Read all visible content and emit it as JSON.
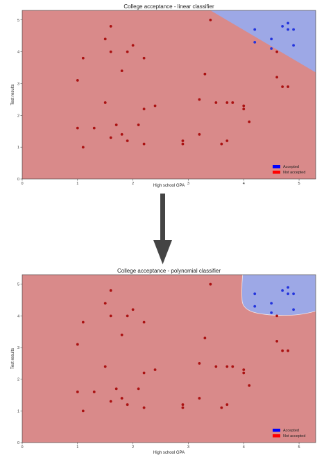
{
  "chart_data": [
    {
      "type": "scatter",
      "title": "College acceptance - linear classifier",
      "xlabel": "High school GPA",
      "ylabel": "Test results",
      "xlim": [
        0,
        5.3
      ],
      "ylim": [
        0,
        5.3
      ],
      "xticks": [
        0,
        1,
        2,
        3,
        4,
        5
      ],
      "yticks": [
        0,
        1,
        2,
        3,
        4,
        5
      ],
      "grid": false,
      "legend_position": "bottom-right",
      "colors": {
        "accepted_region": "#9da8e6",
        "rejected_region": "#d98a8a",
        "accepted_point": "#2233dd",
        "rejected_point": "#aa1111",
        "legend_accepted": "#0000ff",
        "legend_rejected": "#ff0000"
      },
      "boundary": "linear",
      "series": [
        {
          "name": "Accepted",
          "points": [
            [
              4.2,
              4.7
            ],
            [
              4.7,
              4.8
            ],
            [
              4.8,
              4.9
            ],
            [
              4.8,
              4.7
            ],
            [
              4.9,
              4.7
            ],
            [
              4.5,
              4.4
            ],
            [
              4.2,
              4.3
            ],
            [
              4.5,
              4.1
            ],
            [
              4.9,
              4.2
            ]
          ]
        },
        {
          "name": "Not accepted",
          "points": [
            [
              1.6,
              4.8
            ],
            [
              1.5,
              4.4
            ],
            [
              1.6,
              4.0
            ],
            [
              1.9,
              4.0
            ],
            [
              2.0,
              4.2
            ],
            [
              1.1,
              3.8
            ],
            [
              1.8,
              3.4
            ],
            [
              2.2,
              3.8
            ],
            [
              1.0,
              3.1
            ],
            [
              3.4,
              5.0
            ],
            [
              3.3,
              3.3
            ],
            [
              4.6,
              4.0
            ],
            [
              4.6,
              3.2
            ],
            [
              4.7,
              2.9
            ],
            [
              4.8,
              2.9
            ],
            [
              1.5,
              2.4
            ],
            [
              2.4,
              2.3
            ],
            [
              2.2,
              2.2
            ],
            [
              3.2,
              2.5
            ],
            [
              3.5,
              2.4
            ],
            [
              3.7,
              2.4
            ],
            [
              3.8,
              2.4
            ],
            [
              4.0,
              2.3
            ],
            [
              4.0,
              2.2
            ],
            [
              4.1,
              1.8
            ],
            [
              1.7,
              1.7
            ],
            [
              2.1,
              1.7
            ],
            [
              1.0,
              1.6
            ],
            [
              1.3,
              1.6
            ],
            [
              1.8,
              1.4
            ],
            [
              1.6,
              1.3
            ],
            [
              1.9,
              1.2
            ],
            [
              2.9,
              1.2
            ],
            [
              2.9,
              1.1
            ],
            [
              3.2,
              1.4
            ],
            [
              3.6,
              1.1
            ],
            [
              3.7,
              1.2
            ],
            [
              2.2,
              1.1
            ],
            [
              1.1,
              1.0
            ]
          ]
        }
      ]
    },
    {
      "type": "scatter",
      "title": "College acceptance - polynomial classifier",
      "xlabel": "High school GPA",
      "ylabel": "Test results",
      "xlim": [
        0,
        5.3
      ],
      "ylim": [
        0,
        5.3
      ],
      "xticks": [
        0,
        1,
        2,
        3,
        4,
        5
      ],
      "yticks": [
        0,
        1,
        2,
        3,
        4,
        5
      ],
      "grid": false,
      "legend_position": "bottom-right",
      "colors": {
        "accepted_region": "#9da8e6",
        "rejected_region": "#d98a8a",
        "accepted_point": "#2233dd",
        "rejected_point": "#aa1111",
        "legend_accepted": "#0000ff",
        "legend_rejected": "#ff0000"
      },
      "boundary": "polynomial",
      "series": [
        {
          "name": "Accepted",
          "points": [
            [
              4.2,
              4.7
            ],
            [
              4.7,
              4.8
            ],
            [
              4.8,
              4.9
            ],
            [
              4.8,
              4.7
            ],
            [
              4.9,
              4.7
            ],
            [
              4.5,
              4.4
            ],
            [
              4.2,
              4.3
            ],
            [
              4.5,
              4.1
            ],
            [
              4.9,
              4.2
            ]
          ]
        },
        {
          "name": "Not accepted",
          "points": [
            [
              1.6,
              4.8
            ],
            [
              1.5,
              4.4
            ],
            [
              1.6,
              4.0
            ],
            [
              1.9,
              4.0
            ],
            [
              2.0,
              4.2
            ],
            [
              1.1,
              3.8
            ],
            [
              1.8,
              3.4
            ],
            [
              2.2,
              3.8
            ],
            [
              1.0,
              3.1
            ],
            [
              3.4,
              5.0
            ],
            [
              3.3,
              3.3
            ],
            [
              4.6,
              4.0
            ],
            [
              4.6,
              3.2
            ],
            [
              4.7,
              2.9
            ],
            [
              4.8,
              2.9
            ],
            [
              1.5,
              2.4
            ],
            [
              2.4,
              2.3
            ],
            [
              2.2,
              2.2
            ],
            [
              3.2,
              2.5
            ],
            [
              3.5,
              2.4
            ],
            [
              3.7,
              2.4
            ],
            [
              3.8,
              2.4
            ],
            [
              4.0,
              2.3
            ],
            [
              4.0,
              2.2
            ],
            [
              4.1,
              1.8
            ],
            [
              1.7,
              1.7
            ],
            [
              2.1,
              1.7
            ],
            [
              1.0,
              1.6
            ],
            [
              1.3,
              1.6
            ],
            [
              1.8,
              1.4
            ],
            [
              1.6,
              1.3
            ],
            [
              1.9,
              1.2
            ],
            [
              2.9,
              1.2
            ],
            [
              2.9,
              1.1
            ],
            [
              3.2,
              1.4
            ],
            [
              3.6,
              1.1
            ],
            [
              3.7,
              1.2
            ],
            [
              2.2,
              1.1
            ],
            [
              1.1,
              1.0
            ]
          ]
        }
      ]
    }
  ],
  "arrow": {
    "color": "#444444"
  }
}
